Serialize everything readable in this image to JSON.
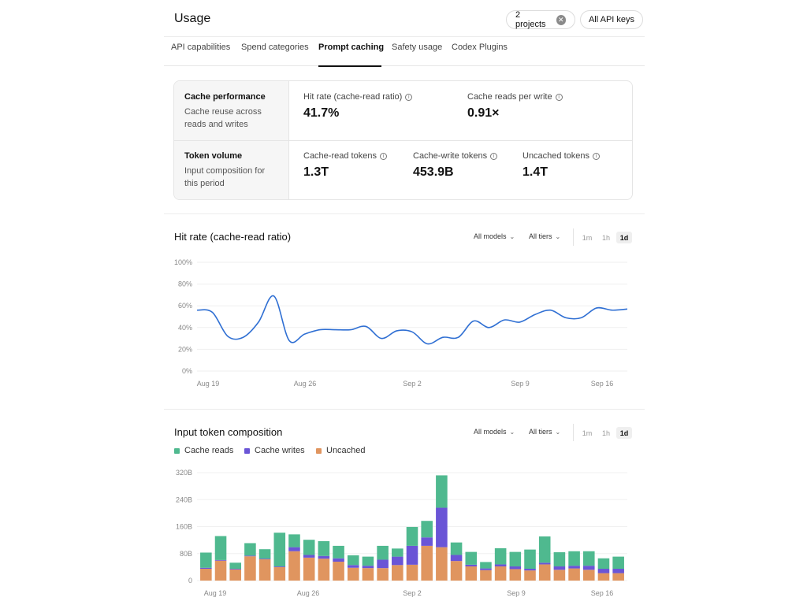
{
  "header": {
    "title": "Usage",
    "projects_label": "2 projects",
    "api_keys_label": "All API keys"
  },
  "tabs": [
    {
      "label": "API capabilities"
    },
    {
      "label": "Spend categories"
    },
    {
      "label": "Prompt caching",
      "active": true
    },
    {
      "label": "Safety usage"
    },
    {
      "label": "Codex Plugins"
    }
  ],
  "stats": {
    "cache_performance": {
      "title": "Cache performance",
      "description": "Cache reuse across reads and writes"
    },
    "token_volume": {
      "title": "Token volume",
      "description": "Input composition for this period"
    },
    "hit_rate": {
      "label": "Hit rate (cache-read ratio)",
      "value": "41.7%"
    },
    "reads_per_write": {
      "label": "Cache reads per write",
      "value": "0.91×"
    },
    "cache_read_tokens": {
      "label": "Cache-read tokens",
      "value": "1.3T"
    },
    "cache_write_tokens": {
      "label": "Cache-write tokens",
      "value": "453.9B"
    },
    "uncached_tokens": {
      "label": "Uncached tokens",
      "value": "1.4T"
    }
  },
  "controls": {
    "models": "All models",
    "tiers": "All tiers",
    "granularity": [
      "1m",
      "1h",
      "1d"
    ],
    "active_granularity": "1d"
  },
  "colors": {
    "line": "#2f6fd3",
    "cache_reads": "#4fb98f",
    "cache_writes": "#6a55d6",
    "uncached": "#e0955f"
  },
  "hit_rate_chart": {
    "title": "Hit rate (cache-read ratio)",
    "chart_data": {
      "type": "line",
      "ylim": [
        0,
        100
      ],
      "y_ticks": [
        "0%",
        "20%",
        "40%",
        "60%",
        "80%",
        "100%"
      ],
      "x_ticks": [
        "Aug 19",
        "Aug 26",
        "Sep 2",
        "Sep 9",
        "Sep 16"
      ],
      "values": [
        56,
        54,
        32,
        31,
        45,
        69,
        28,
        34,
        38,
        38,
        38,
        41,
        30,
        37,
        36,
        25,
        31,
        31,
        46,
        40,
        47,
        45,
        52,
        56,
        49,
        49,
        58,
        56,
        57
      ]
    }
  },
  "composition_chart": {
    "title": "Input token composition",
    "legend": [
      "Cache reads",
      "Cache writes",
      "Uncached"
    ],
    "chart_data": {
      "type": "bar",
      "stacked": true,
      "unit": "B",
      "ylim": [
        0,
        320
      ],
      "y_ticks": [
        "0",
        "80B",
        "160B",
        "240B",
        "320B"
      ],
      "x_ticks": [
        "Aug 19",
        "Aug 26",
        "Sep 2",
        "Sep 9",
        "Sep 16"
      ],
      "series": [
        {
          "name": "Uncached",
          "values": [
            35,
            59,
            33,
            72,
            63,
            40,
            87,
            68,
            65,
            56,
            38,
            37,
            37,
            46,
            47,
            103,
            99,
            58,
            42,
            31,
            42,
            34,
            30,
            48,
            32,
            36,
            32,
            22,
            22
          ]
        },
        {
          "name": "Cache writes",
          "values": [
            3,
            2,
            2,
            2,
            2,
            2,
            12,
            8,
            8,
            10,
            8,
            7,
            25,
            25,
            56,
            25,
            117,
            18,
            5,
            5,
            6,
            8,
            5,
            5,
            10,
            8,
            12,
            13,
            13
          ]
        },
        {
          "name": "Cache reads",
          "values": [
            45,
            71,
            18,
            37,
            28,
            100,
            38,
            45,
            44,
            37,
            29,
            27,
            41,
            24,
            56,
            49,
            96,
            37,
            38,
            19,
            48,
            43,
            57,
            78,
            42,
            43,
            43,
            31,
            36
          ]
        }
      ]
    }
  }
}
